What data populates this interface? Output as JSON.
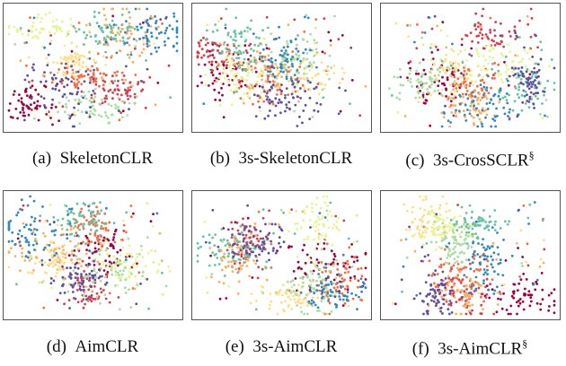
{
  "figure": {
    "panels": [
      {
        "label": "(a)",
        "name": "SkeletonCLR"
      },
      {
        "label": "(b)",
        "name": "3s-SkeletonCLR"
      },
      {
        "label": "(c)",
        "name": "3s-CrosSCLR",
        "mark": "§"
      },
      {
        "label": "(d)",
        "name": "AimCLR"
      },
      {
        "label": "(e)",
        "name": "3s-AimCLR"
      },
      {
        "label": "(f)",
        "name": "3s-AimCLR",
        "mark": "§"
      }
    ]
  }
}
